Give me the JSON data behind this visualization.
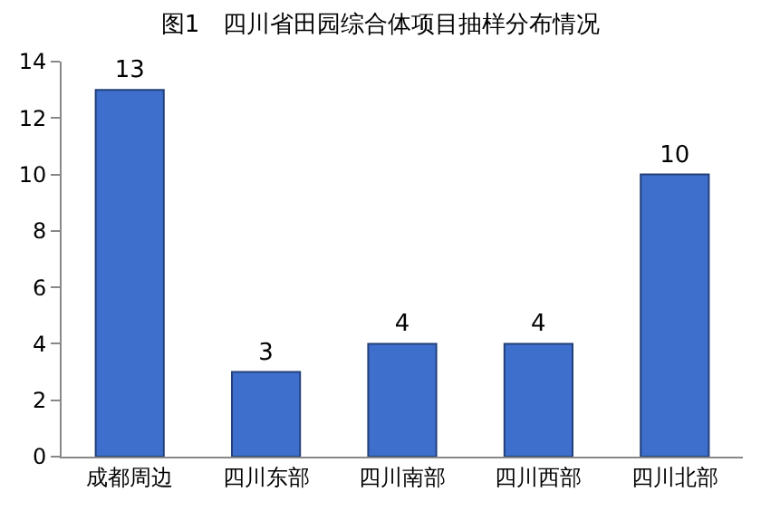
{
  "chart_data": {
    "type": "bar",
    "title": "图1　四川省田园综合体项目抽样分布情况",
    "categories": [
      "成都周边",
      "四川东部",
      "四川南部",
      "四川西部",
      "四川北部"
    ],
    "values": [
      13,
      3,
      4,
      4,
      10
    ],
    "color": "#3f6fcc",
    "ylim": [
      0,
      14
    ],
    "yticks": [
      0,
      2,
      4,
      6,
      8,
      10,
      12,
      14
    ],
    "data_labels": true
  }
}
